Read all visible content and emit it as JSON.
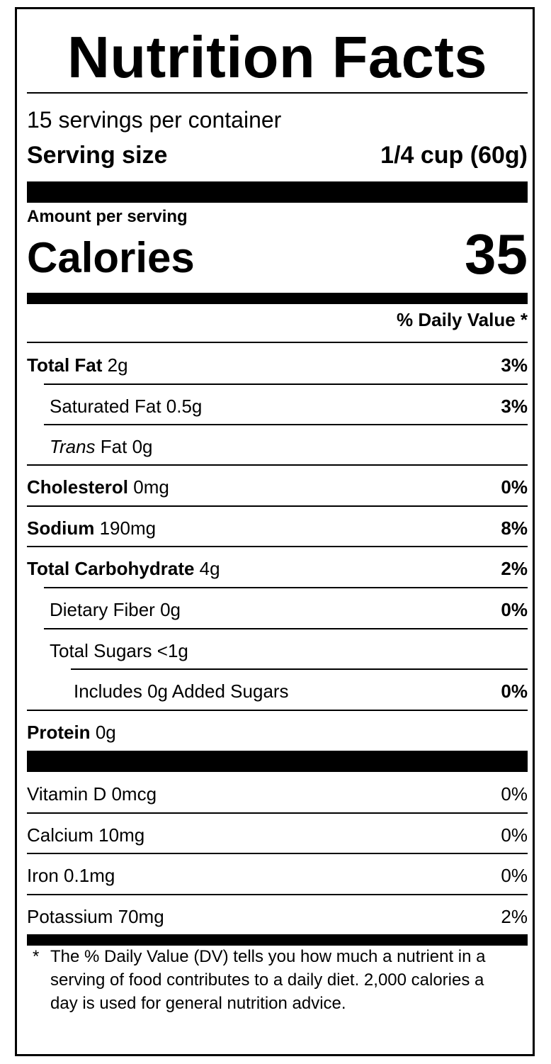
{
  "title": "Nutrition Facts",
  "servings": "15 servings per container",
  "serving_size": {
    "label": "Serving size",
    "value": "1/4 cup (60g)"
  },
  "amount_per_serving": "Amount per serving",
  "calories": {
    "label": "Calories",
    "value": "35"
  },
  "daily_value_header": "% Daily Value *",
  "nutrients": [
    {
      "name": "Total Fat",
      "amount": "2g",
      "dv": "3%"
    },
    {
      "name": "Saturated Fat",
      "amount": "0.5g",
      "dv": "3%"
    },
    {
      "name": "Trans",
      "name_rest": "Fat",
      "amount": "0g",
      "dv": ""
    },
    {
      "name": "Cholesterol",
      "amount": "0mg",
      "dv": "0%"
    },
    {
      "name": "Sodium",
      "amount": "190mg",
      "dv": "8%"
    },
    {
      "name": "Total Carbohydrate",
      "amount": "4g",
      "dv": "2%"
    },
    {
      "name": "Dietary Fiber",
      "amount": "0g",
      "dv": "0%"
    },
    {
      "name": "Total Sugars",
      "amount": "<1g",
      "dv": ""
    },
    {
      "name": "Includes 0g Added Sugars",
      "amount": "",
      "dv": "0%"
    },
    {
      "name": "Protein",
      "amount": "0g",
      "dv": ""
    }
  ],
  "vitamins": [
    {
      "name": "Vitamin D",
      "amount": "0mcg",
      "dv": "0%"
    },
    {
      "name": "Calcium",
      "amount": "10mg",
      "dv": "0%"
    },
    {
      "name": "Iron",
      "amount": "0.1mg",
      "dv": "0%"
    },
    {
      "name": "Potassium",
      "amount": "70mg",
      "dv": "2%"
    }
  ],
  "footnote": {
    "star": "*",
    "text": "The % Daily Value (DV) tells you how much a nutrient in a serving of food contributes to a daily diet. 2,000 calories a day is used for general nutrition advice."
  }
}
